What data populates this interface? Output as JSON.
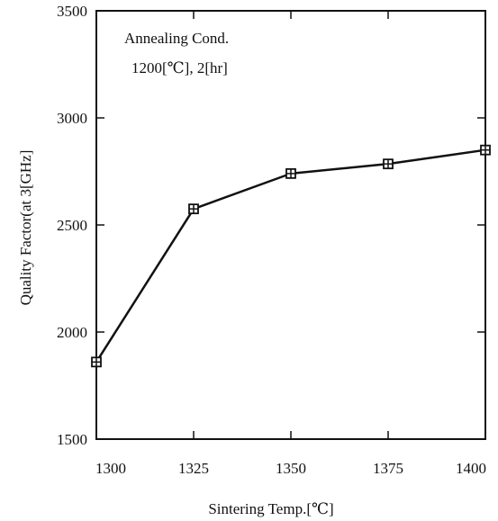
{
  "chart_data": {
    "type": "line",
    "title": "",
    "xlabel": "Sintering Temp.[℃]",
    "ylabel": "Quality Factor(at 3[GHz]",
    "xlim": [
      1300,
      1400
    ],
    "ylim": [
      1500,
      3500
    ],
    "x_ticks": [
      1300,
      1325,
      1350,
      1375,
      1400
    ],
    "y_ticks": [
      1500,
      2000,
      2500,
      3000,
      3500
    ],
    "grid": false,
    "annotations": [
      "Annealing Cond.",
      "1200[℃], 2[hr]"
    ],
    "series": [
      {
        "marker": "boxed-plus",
        "color": "#111111",
        "x": [
          1300,
          1325,
          1350,
          1375,
          1400
        ],
        "y": [
          1860,
          2575,
          2740,
          2785,
          2850
        ]
      }
    ]
  }
}
